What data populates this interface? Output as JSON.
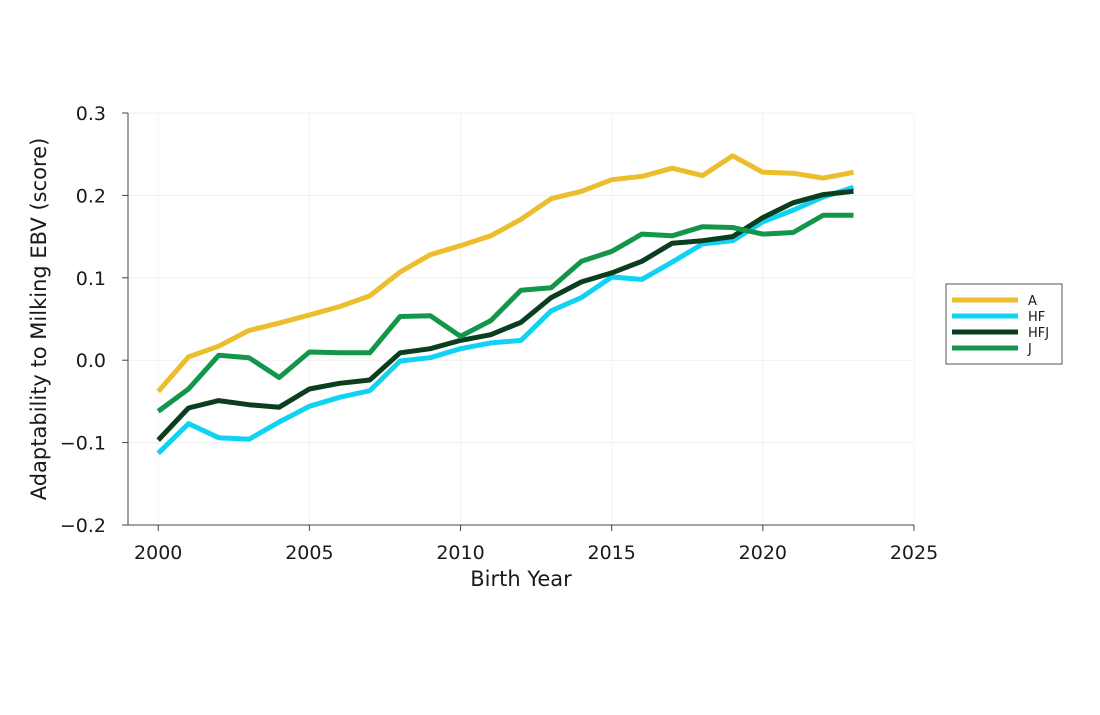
{
  "chart_data": {
    "type": "line",
    "title": "",
    "xlabel": "Birth Year",
    "ylabel": "Adaptability to Milking EBV (score)",
    "xlim": [
      1999,
      2025
    ],
    "ylim": [
      -0.2,
      0.3
    ],
    "x_ticks": [
      2000,
      2005,
      2010,
      2015,
      2020,
      2025
    ],
    "x_tick_labels": [
      "2000",
      "2005",
      "2010",
      "2015",
      "2020",
      "2025"
    ],
    "y_ticks": [
      -0.2,
      -0.1,
      0.0,
      0.1,
      0.2,
      0.3
    ],
    "y_tick_labels": [
      "−0.2",
      "−0.1",
      "0.0",
      "0.1",
      "0.2",
      "0.3"
    ],
    "grid": true,
    "legend_position": "right",
    "x": [
      2000,
      2001,
      2002,
      2003,
      2004,
      2005,
      2006,
      2007,
      2008,
      2009,
      2010,
      2011,
      2012,
      2013,
      2014,
      2015,
      2016,
      2017,
      2018,
      2019,
      2020,
      2021,
      2022,
      2023
    ],
    "series": [
      {
        "name": "A",
        "color": "#ecbd2c",
        "values": [
          -0.038,
          0.004,
          0.017,
          0.036,
          0.045,
          0.055,
          0.065,
          0.078,
          0.107,
          0.128,
          0.139,
          0.151,
          0.171,
          0.196,
          0.205,
          0.219,
          0.223,
          0.233,
          0.224,
          0.248,
          0.228,
          0.227,
          0.221,
          0.228
        ]
      },
      {
        "name": "HF",
        "color": "#12d2f4",
        "values": [
          -0.113,
          -0.077,
          -0.094,
          -0.096,
          -0.075,
          -0.056,
          -0.045,
          -0.037,
          -0.001,
          0.003,
          0.014,
          0.021,
          0.024,
          0.06,
          0.076,
          0.101,
          0.098,
          0.119,
          0.141,
          0.145,
          0.168,
          0.182,
          0.198,
          0.21
        ]
      },
      {
        "name": "HFJ",
        "color": "#0b3d1f",
        "values": [
          -0.097,
          -0.058,
          -0.049,
          -0.054,
          -0.057,
          -0.035,
          -0.028,
          -0.024,
          0.009,
          0.014,
          0.024,
          0.031,
          0.046,
          0.076,
          0.095,
          0.106,
          0.12,
          0.142,
          0.145,
          0.15,
          0.173,
          0.191,
          0.201,
          0.205
        ]
      },
      {
        "name": "J",
        "color": "#11964a",
        "values": [
          -0.062,
          -0.035,
          0.006,
          0.003,
          -0.021,
          0.01,
          0.009,
          0.009,
          0.053,
          0.054,
          0.029,
          0.048,
          0.085,
          0.088,
          0.12,
          0.132,
          0.153,
          0.151,
          0.162,
          0.161,
          0.153,
          0.155,
          0.176,
          0.176
        ]
      }
    ]
  }
}
